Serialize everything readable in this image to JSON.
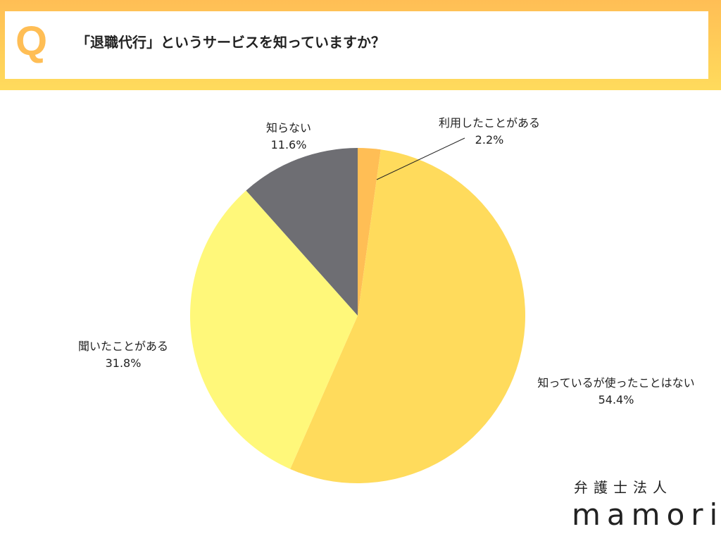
{
  "header": {
    "q_mark": "Q",
    "question": "「退職代行」というサービスを知っていますか？"
  },
  "chart_data": {
    "type": "pie",
    "title": "「退職代行」というサービスを知っていますか？",
    "start_angle": "top, clockwise",
    "slices": [
      {
        "label": "利用したことがある",
        "value": 2.2,
        "display": "2.2%",
        "color": "#FFBE55"
      },
      {
        "label": "知っているが使ったことはない",
        "value": 54.4,
        "display": "54.4%",
        "color": "#FFDB5C"
      },
      {
        "label": "聞いたことがある",
        "value": 31.8,
        "display": "31.8%",
        "color": "#FFF87A"
      },
      {
        "label": "知らない",
        "value": 11.6,
        "display": "11.6%",
        "color": "#6E6E73"
      }
    ]
  },
  "logo": {
    "sub": "弁護士法人",
    "main": "mamori"
  }
}
